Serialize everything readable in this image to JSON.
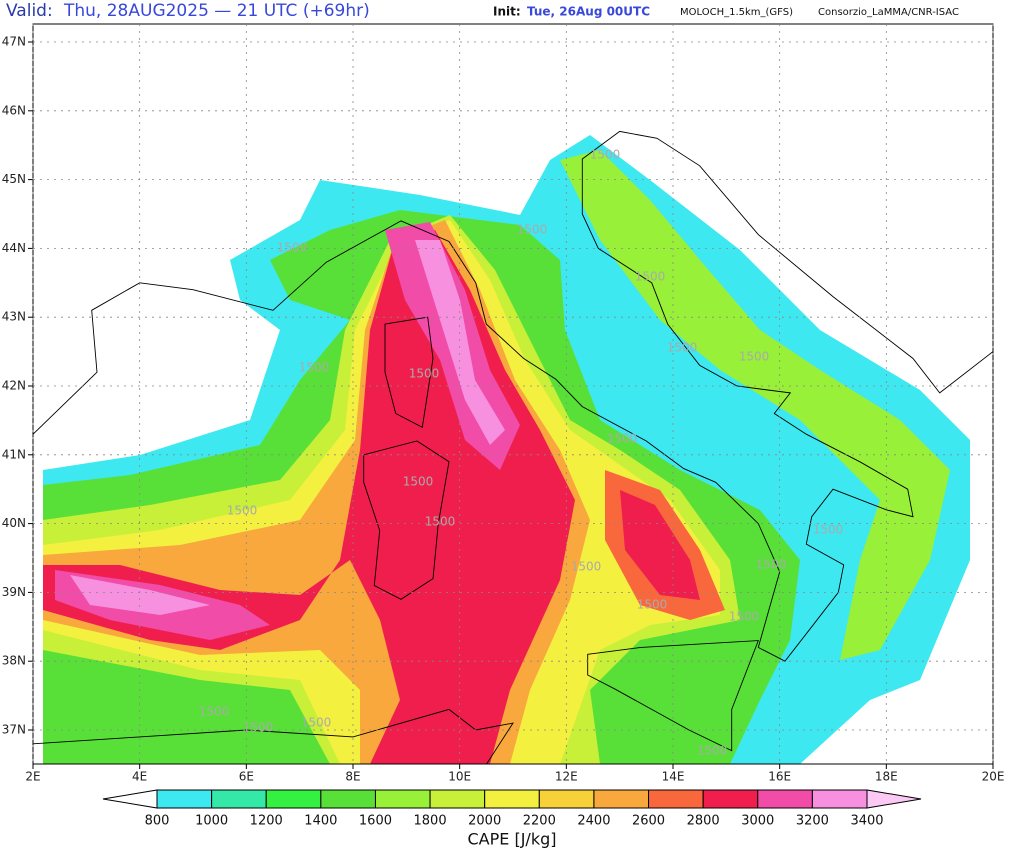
{
  "header": {
    "valid_label": "Valid:",
    "valid_time": "Thu, 28AUG2025 — 21 UTC (+69hr)",
    "init_label": "Init:",
    "init_time": "Tue, 26Aug 00UTC",
    "model": "MOLOCH_1.5km_(GFS)",
    "credit": "Consorzio_LaMMA/CNR-ISAC"
  },
  "map": {
    "lat_labels": [
      "47N",
      "46N",
      "45N",
      "44N",
      "43N",
      "42N",
      "41N",
      "40N",
      "39N",
      "38N",
      "37N"
    ],
    "lon_labels": [
      "2E",
      "4E",
      "6E",
      "8E",
      "10E",
      "12E",
      "14E",
      "16E",
      "18E",
      "20E"
    ],
    "contour_labels": [
      "1500",
      "1500",
      "1500",
      "1500",
      "1500",
      "1500",
      "1500",
      "1500",
      "1500",
      "1500",
      "1500",
      "1500",
      "1500",
      "1500",
      "1500",
      "1500",
      "1500",
      "1500",
      "1500",
      "1500",
      "1500"
    ]
  },
  "colorbar": {
    "title": "CAPE [J/kg]",
    "levels": [
      800,
      1000,
      1200,
      1400,
      1600,
      1800,
      2000,
      2200,
      2400,
      2600,
      2800,
      3000,
      3200,
      3400
    ],
    "colors": [
      "#3ee8f0",
      "#34e8a8",
      "#34f040",
      "#58e038",
      "#98f038",
      "#c8f038",
      "#f4f040",
      "#f8d038",
      "#f8a83c",
      "#f8683c",
      "#f01e4c",
      "#f04ca8",
      "#f890e0"
    ],
    "under_color": "#ffffff",
    "over_color": "#fcc8f4"
  }
}
